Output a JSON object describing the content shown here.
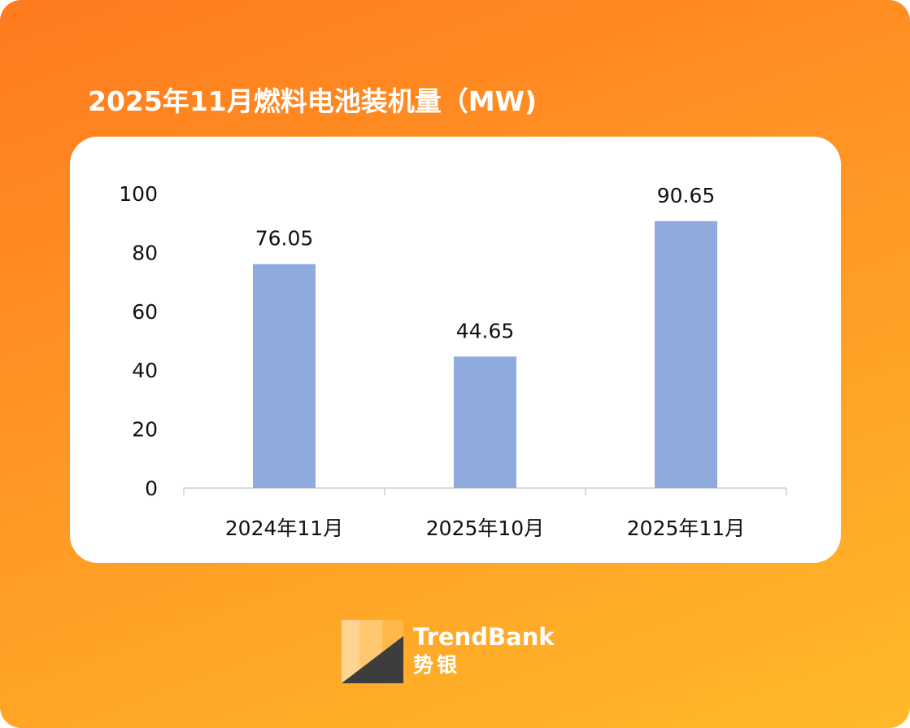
{
  "brand": {
    "name_en": "TrendBank",
    "name_cn": "势银",
    "accent": "#ff8a22"
  },
  "chart_data": {
    "type": "bar",
    "title": "2025年11月燃料电池装机量（MW)",
    "categories": [
      "2024年11月",
      "2025年10月",
      "2025年11月"
    ],
    "values": [
      76.05,
      44.65,
      90.65
    ],
    "data_labels": [
      "76.05",
      "44.65",
      "90.65"
    ],
    "yticks": [
      "0",
      "20",
      "40",
      "60",
      "80",
      "100"
    ],
    "ylim": [
      0,
      100
    ],
    "bar_color": "#8faadc",
    "grid": false,
    "legend": "none"
  }
}
